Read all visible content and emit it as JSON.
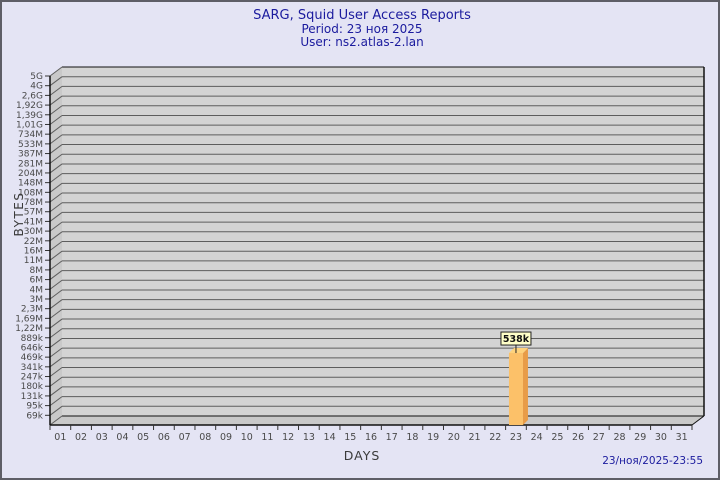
{
  "header": {
    "title": "SARG, Squid User Access Reports",
    "period": "Period: 23 ноя 2025",
    "user": "User: ns2.atlas-2.lan"
  },
  "footer": {
    "timestamp": "23/ноя/2025-23:55"
  },
  "chart_data": {
    "type": "bar",
    "title": "SARG, Squid User Access Reports",
    "subtitle": "Period: 23 ноя 2025 — User: ns2.atlas-2.lan",
    "xlabel": "DAYS",
    "ylabel": "BYTES",
    "y_scale": "log",
    "y_top_value": 5000000000,
    "y_bottom_value": 69000,
    "y_tick_labels": [
      "5G",
      "4G",
      "2,6G",
      "1,92G",
      "1,39G",
      "1,01G",
      "734M",
      "533M",
      "387M",
      "281M",
      "204M",
      "148M",
      "108M",
      "78M",
      "57M",
      "41M",
      "30M",
      "22M",
      "16M",
      "11M",
      "8M",
      "6M",
      "4M",
      "3M",
      "2,3M",
      "1,69M",
      "1,22M",
      "889k",
      "646k",
      "469k",
      "341k",
      "247k",
      "180k",
      "131k",
      "95k",
      "69k"
    ],
    "categories": [
      "01",
      "02",
      "03",
      "04",
      "05",
      "06",
      "07",
      "08",
      "09",
      "10",
      "11",
      "12",
      "13",
      "14",
      "15",
      "16",
      "17",
      "18",
      "19",
      "20",
      "21",
      "22",
      "23",
      "24",
      "25",
      "26",
      "27",
      "28",
      "29",
      "30",
      "31"
    ],
    "values": [
      0,
      0,
      0,
      0,
      0,
      0,
      0,
      0,
      0,
      0,
      0,
      0,
      0,
      0,
      0,
      0,
      0,
      0,
      0,
      0,
      0,
      0,
      538000,
      0,
      0,
      0,
      0,
      0,
      0,
      0,
      0
    ],
    "bar_label": "538k",
    "bar_day": "23",
    "legend": null,
    "grid": true,
    "colors": {
      "page_bg": "#e4e4f4",
      "accent_text": "#1b1b9e",
      "plot_bg": "#d4d4d4",
      "grid": "#5e5e5e",
      "wall": "#c9c9c9",
      "edge": "#111111",
      "tick_text": "#4a4a4a",
      "bar_front": "#fcc169",
      "bar_side": "#e89c48",
      "bar_top": "#ffd37c",
      "label_box_bg": "#ffffc8"
    }
  }
}
